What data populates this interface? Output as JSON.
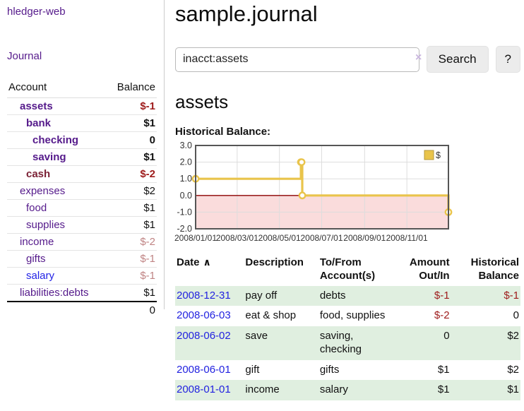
{
  "app": {
    "title": "hledger-web"
  },
  "palette": {
    "link_purple": "#551a8b",
    "link_blue": "#2323e6",
    "account_maroon": "#7b2135",
    "negative_strong": "#9e1b1b",
    "negative_muted": "#c08484",
    "row_stripe_green": "#e0efe0",
    "chart_gold": "#e9c44b",
    "chart_negative_pink": "#fadcdc",
    "chart_zero_line": "#8b0000"
  },
  "sidebar": {
    "nav_journal": "Journal",
    "table": {
      "account_header": "Account",
      "balance_header": "Balance",
      "rows": [
        {
          "account": "assets",
          "balance": "$-1",
          "level": 1,
          "bold": true,
          "account_style": "c-purple",
          "balance_style": "b-neg"
        },
        {
          "account": "bank",
          "balance": "$1",
          "level": 2,
          "bold": true,
          "account_style": "c-purple",
          "balance_style": "b-pos"
        },
        {
          "account": "checking",
          "balance": "0",
          "level": 3,
          "bold": true,
          "account_style": "c-purple",
          "balance_style": "b-pos"
        },
        {
          "account": "saving",
          "balance": "$1",
          "level": 3,
          "bold": true,
          "account_style": "c-purple",
          "balance_style": "b-pos"
        },
        {
          "account": "cash",
          "balance": "$-2",
          "level": 2,
          "bold": true,
          "account_style": "c-maroon",
          "balance_style": "b-neg"
        },
        {
          "account": "expenses",
          "balance": "$2",
          "level": 1,
          "bold": false,
          "account_style": "c-purple",
          "balance_style": "b-pos"
        },
        {
          "account": "food",
          "balance": "$1",
          "level": 2,
          "bold": false,
          "account_style": "c-purple",
          "balance_style": "b-pos"
        },
        {
          "account": "supplies",
          "balance": "$1",
          "level": 2,
          "bold": false,
          "account_style": "c-purple",
          "balance_style": "b-pos"
        },
        {
          "account": "income",
          "balance": "$-2",
          "level": 1,
          "bold": false,
          "account_style": "c-purple",
          "balance_style": "b-negmut"
        },
        {
          "account": "gifts",
          "balance": "$-1",
          "level": 2,
          "bold": false,
          "account_style": "c-purple",
          "balance_style": "b-negmut"
        },
        {
          "account": "salary",
          "balance": "$-1",
          "level": 2,
          "bold": false,
          "account_style": "c-blue",
          "balance_style": "b-negmut"
        },
        {
          "account": "liabilities:debts",
          "balance": "$1",
          "level": 1,
          "bold": false,
          "account_style": "c-purple",
          "balance_style": "b-pos"
        }
      ],
      "total": "0"
    }
  },
  "main": {
    "title": "sample.journal",
    "search": {
      "value": "inacct:assets",
      "clear_icon": "×",
      "button_label": "Search",
      "help_label": "?"
    },
    "heading": "assets",
    "chart_label": "Historical Balance:",
    "register_table": {
      "headers": {
        "date": "Date",
        "description": "Description",
        "accounts": "To/From Account(s)",
        "amount": "Amount Out/In",
        "balance": "Historical Balance"
      },
      "sort_indicator": "∧",
      "rows": [
        {
          "date": "2008-12-31",
          "description": "pay off",
          "accounts": "debts",
          "amount": "$-1",
          "balance": "$-1"
        },
        {
          "date": "2008-06-03",
          "description": "eat & shop",
          "accounts": "food, supplies",
          "amount": "$-2",
          "balance": "0"
        },
        {
          "date": "2008-06-02",
          "description": "save",
          "accounts": "saving, checking",
          "amount": "0",
          "balance": "$2"
        },
        {
          "date": "2008-06-01",
          "description": "gift",
          "accounts": "gifts",
          "amount": "$1",
          "balance": "$2"
        },
        {
          "date": "2008-01-01",
          "description": "income",
          "accounts": "salary",
          "amount": "$1",
          "balance": "$1"
        }
      ]
    }
  },
  "chart_data": {
    "type": "line",
    "style": "step-after",
    "title": "Historical Balance",
    "series": [
      {
        "name": "$",
        "color": "#e9c44b",
        "points": [
          [
            "2008-01-01",
            1
          ],
          [
            "2008-06-01",
            2
          ],
          [
            "2008-06-02",
            2
          ],
          [
            "2008-06-03",
            0
          ],
          [
            "2008-12-31",
            -1
          ]
        ]
      }
    ],
    "x_range": [
      "2008-01-01",
      "2008-12-31"
    ],
    "x_ticks": [
      "2008/01/01",
      "2008/03/01",
      "2008/05/01",
      "2008/07/01",
      "2008/09/01",
      "2008/11/01"
    ],
    "y_ticks": [
      3.0,
      2.0,
      1.0,
      0.0,
      -1.0,
      -2.0
    ],
    "ylim": [
      -2,
      3
    ],
    "grid": true,
    "negative_region_color": "#fadcdc",
    "zero_line_color": "#8b0000",
    "legend": {
      "position": "top-right"
    }
  }
}
